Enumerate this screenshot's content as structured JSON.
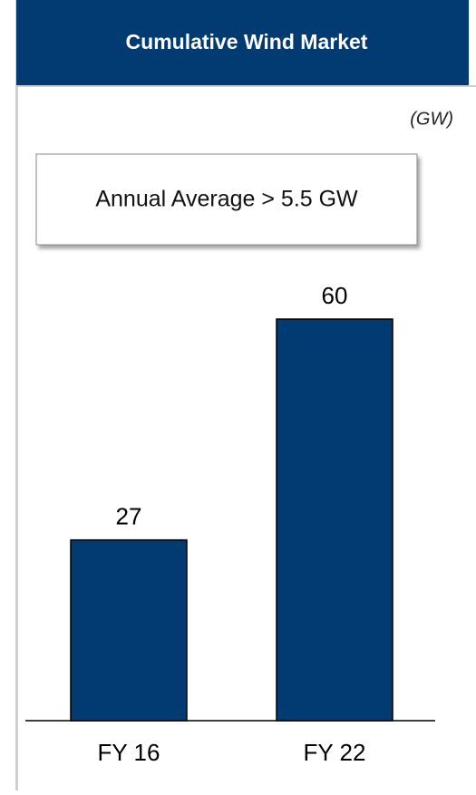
{
  "chart_data": {
    "type": "bar",
    "title": "Cumulative Wind Market",
    "unit_label": "(GW)",
    "annotation": "Annual Average > 5.5 GW",
    "categories": [
      "FY 16",
      "FY 22"
    ],
    "values": [
      27,
      60
    ],
    "color": "#023a72"
  }
}
